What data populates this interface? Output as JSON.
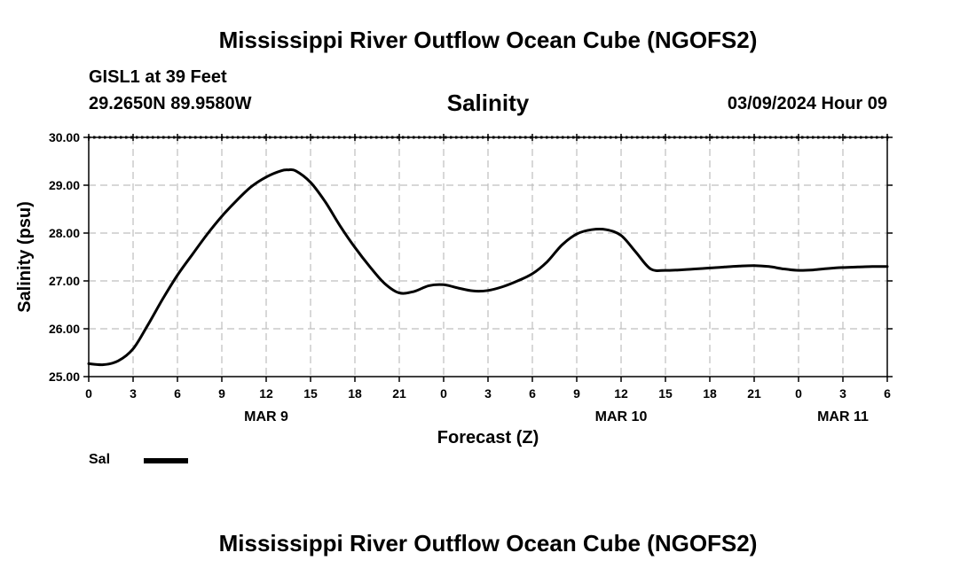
{
  "header": {
    "title": "Mississippi River Outflow Ocean Cube (NGOFS2)",
    "station": "GISL1 at 39 Feet",
    "coords": "29.2650N  89.9580W",
    "datetime": "03/09/2024 Hour 09"
  },
  "footer": {
    "title": "Mississippi River Outflow Ocean Cube (NGOFS2)"
  },
  "legend": {
    "label": "Sal"
  },
  "colors": {
    "line": "#000000",
    "grid": "#bfbfbf"
  },
  "chart_data": {
    "type": "line",
    "title": "Salinity",
    "xlabel": "Forecast (Z)",
    "ylabel": "Salinity (psu)",
    "xlim": [
      0,
      54
    ],
    "ylim": [
      25.0,
      30.0
    ],
    "y_ticks": [
      "25.00",
      "26.00",
      "27.00",
      "28.00",
      "29.00",
      "30.00"
    ],
    "x_ticks": [
      "0",
      "3",
      "6",
      "9",
      "12",
      "15",
      "18",
      "21",
      "0",
      "3",
      "6",
      "9",
      "12",
      "15",
      "18",
      "21",
      "0",
      "3",
      "6"
    ],
    "day_labels": [
      {
        "label": "MAR 9",
        "x": 12
      },
      {
        "label": "MAR 10",
        "x": 36
      },
      {
        "label": "MAR 11",
        "x": 51
      }
    ],
    "grid": true,
    "series": [
      {
        "name": "Sal",
        "x": [
          0,
          1,
          2,
          3,
          4,
          5,
          6,
          7,
          8,
          9,
          10,
          11,
          12,
          13,
          13.5,
          14,
          15,
          16,
          17,
          18,
          19,
          20,
          21,
          22,
          23,
          24,
          25,
          26,
          27,
          28,
          29,
          30,
          31,
          32,
          33,
          34,
          35,
          36,
          37,
          38,
          39,
          40,
          41,
          42,
          43,
          44,
          45,
          46,
          47,
          48,
          49,
          50,
          51,
          52,
          53,
          54
        ],
        "values": [
          25.27,
          25.25,
          25.33,
          25.58,
          26.08,
          26.62,
          27.12,
          27.55,
          27.97,
          28.35,
          28.68,
          28.97,
          29.17,
          29.3,
          29.32,
          29.3,
          29.06,
          28.65,
          28.15,
          27.7,
          27.3,
          26.95,
          26.75,
          26.78,
          26.9,
          26.92,
          26.85,
          26.79,
          26.8,
          26.88,
          27.0,
          27.15,
          27.4,
          27.75,
          27.98,
          28.07,
          28.07,
          27.95,
          27.6,
          27.25,
          27.22,
          27.23,
          27.25,
          27.27,
          27.29,
          27.31,
          27.32,
          27.3,
          27.25,
          27.22,
          27.23,
          27.26,
          27.28,
          27.29,
          27.3,
          27.3
        ]
      }
    ]
  }
}
